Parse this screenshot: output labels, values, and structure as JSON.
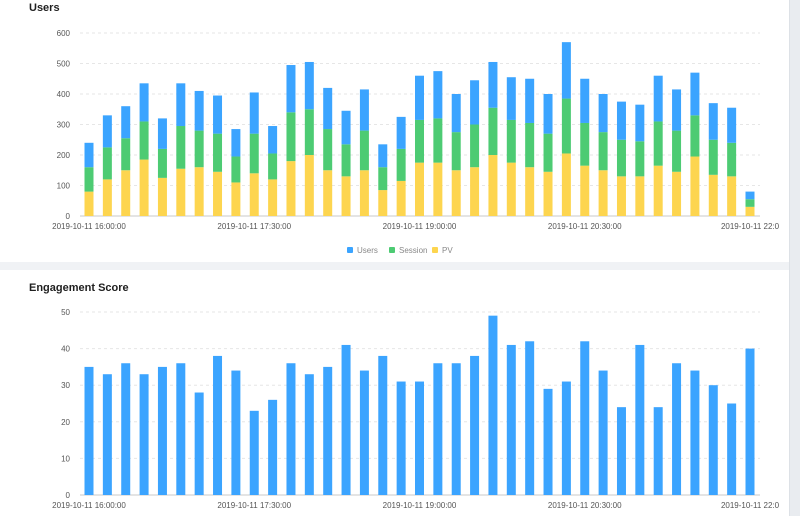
{
  "chart_data": [
    {
      "type": "bar",
      "stacked": true,
      "title": "Users",
      "ylim": [
        0,
        600
      ],
      "yticks": [
        0,
        100,
        200,
        300,
        400,
        500,
        600
      ],
      "xticks": [
        "2019-10-11 16:00:00",
        "2019-10-11 17:30:00",
        "2019-10-11 19:00:00",
        "2019-10-11 20:30:00",
        "2019-10-11 22:0"
      ],
      "grid": true,
      "legend_position": "bottom-center",
      "series": [
        {
          "name": "PV",
          "color": "#fdd54f",
          "values": [
            80,
            120,
            150,
            185,
            125,
            155,
            160,
            145,
            110,
            140,
            120,
            180,
            200,
            150,
            130,
            150,
            85,
            115,
            175,
            175,
            150,
            160,
            200,
            175,
            160,
            145,
            205,
            165,
            150,
            130,
            130,
            165,
            145,
            195,
            135,
            130,
            30
          ]
        },
        {
          "name": "Session",
          "color": "#4dcb73",
          "values": [
            80,
            105,
            105,
            125,
            95,
            140,
            120,
            125,
            85,
            130,
            85,
            160,
            150,
            135,
            105,
            130,
            75,
            105,
            140,
            145,
            125,
            140,
            155,
            140,
            145,
            125,
            180,
            140,
            125,
            120,
            115,
            145,
            135,
            135,
            115,
            110,
            25
          ]
        },
        {
          "name": "Users",
          "color": "#3ba4ff",
          "values": [
            80,
            105,
            105,
            125,
            100,
            140,
            130,
            125,
            90,
            135,
            90,
            155,
            155,
            135,
            110,
            135,
            75,
            105,
            145,
            155,
            125,
            145,
            150,
            140,
            145,
            130,
            185,
            145,
            125,
            125,
            120,
            150,
            135,
            140,
            120,
            115,
            25
          ]
        }
      ],
      "legend": [
        "Users",
        "Session",
        "PV"
      ]
    },
    {
      "type": "bar",
      "title": "Engagement Score",
      "ylim": [
        0,
        50
      ],
      "yticks": [
        0,
        10,
        20,
        30,
        40,
        50
      ],
      "xticks": [
        "2019-10-11 16:00:00",
        "2019-10-11 17:30:00",
        "2019-10-11 19:00:00",
        "2019-10-11 20:30:00",
        "2019-10-11 22:0"
      ],
      "grid": true,
      "series": [
        {
          "name": "Engagement Score",
          "color": "#3ba4ff",
          "values": [
            35,
            33,
            36,
            33,
            35,
            36,
            28,
            38,
            34,
            23,
            26,
            36,
            33,
            35,
            41,
            34,
            38,
            31,
            31,
            36,
            36,
            38,
            49,
            41,
            42,
            29,
            31,
            42,
            34,
            24,
            41,
            24,
            36,
            34,
            30,
            25,
            40
          ]
        }
      ]
    }
  ]
}
